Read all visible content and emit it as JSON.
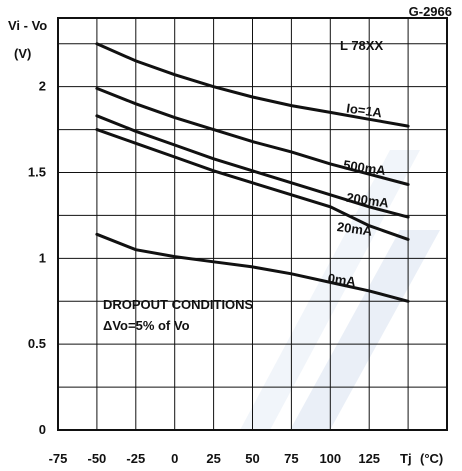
{
  "chart_data": {
    "type": "line",
    "figure_code": "G-2966",
    "device": "L 78XX",
    "ylabel": "Vi - Vo",
    "ylabel_unit": "(V)",
    "xlabel": "Tj",
    "xlabel_unit": "(°C)",
    "xlim": [
      -75,
      175
    ],
    "ylim": [
      0,
      2.4
    ],
    "x_ticks": [
      -75,
      -50,
      -25,
      0,
      25,
      50,
      75,
      100,
      125
    ],
    "y_ticks": [
      0,
      0.5,
      1,
      1.5,
      2
    ],
    "grid": true,
    "note_line1": "DROPOUT CONDITIONS",
    "note_line2": "ΔVo=5% of Vo",
    "series": [
      {
        "name": "Io=1A",
        "x": [
          -50,
          -25,
          0,
          25,
          50,
          75,
          100,
          125,
          150
        ],
        "y": [
          2.25,
          2.15,
          2.07,
          2.0,
          1.94,
          1.89,
          1.85,
          1.81,
          1.77
        ]
      },
      {
        "name": "500mA",
        "x": [
          -50,
          -25,
          0,
          25,
          50,
          75,
          100,
          125,
          150
        ],
        "y": [
          1.99,
          1.9,
          1.82,
          1.75,
          1.68,
          1.62,
          1.55,
          1.49,
          1.43
        ]
      },
      {
        "name": "200mA",
        "x": [
          -50,
          -25,
          0,
          25,
          50,
          75,
          100,
          125,
          150
        ],
        "y": [
          1.83,
          1.74,
          1.66,
          1.58,
          1.51,
          1.44,
          1.37,
          1.3,
          1.24
        ]
      },
      {
        "name": "20mA",
        "x": [
          -50,
          -25,
          0,
          25,
          50,
          75,
          100,
          125,
          150
        ],
        "y": [
          1.75,
          1.67,
          1.59,
          1.51,
          1.44,
          1.37,
          1.3,
          1.19,
          1.11
        ]
      },
      {
        "name": "0mA",
        "x": [
          -50,
          -25,
          0,
          25,
          50,
          75,
          100,
          125,
          150
        ],
        "y": [
          1.14,
          1.05,
          1.01,
          0.98,
          0.95,
          0.91,
          0.86,
          0.81,
          0.75
        ]
      }
    ]
  }
}
